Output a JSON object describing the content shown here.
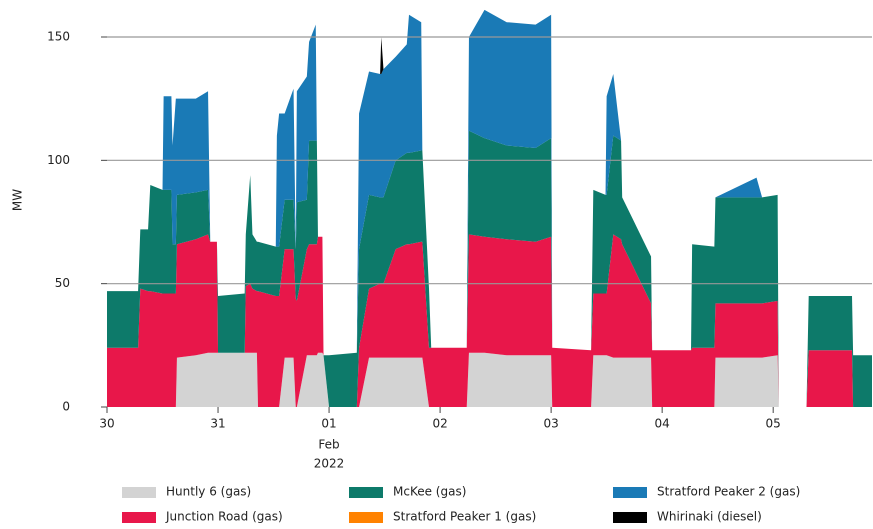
{
  "chart_data": {
    "type": "stacked_area",
    "y_label": "MW",
    "xlim": [
      0,
      6.89
    ],
    "ylim": [
      0,
      165
    ],
    "yticks": [
      0,
      50,
      100,
      150
    ],
    "xticks": [
      {
        "value": 0,
        "label": "30"
      },
      {
        "value": 1,
        "label": "31"
      },
      {
        "value": 2,
        "label": "01"
      },
      {
        "value": 3,
        "label": "02"
      },
      {
        "value": 4,
        "label": "03"
      },
      {
        "value": 5,
        "label": "04"
      },
      {
        "value": 6,
        "label": "05"
      }
    ],
    "xtick_sublabels": [
      "Feb",
      "2022"
    ],
    "grid": true,
    "x": [
      0,
      0.28,
      0.3,
      0.37,
      0.39,
      0.5,
      0.51,
      0.58,
      0.59,
      0.62,
      0.63,
      0.8,
      0.91,
      0.93,
      0.99,
      1,
      1.24,
      1.25,
      1.29,
      1.31,
      1.35,
      1.36,
      1.52,
      1.53,
      1.55,
      1.6,
      1.68,
      1.7,
      1.71,
      1.8,
      1.82,
      1.88,
      1.89,
      1.9,
      1.94,
      1.95,
      2,
      2.25,
      2.27,
      2.36,
      2.46,
      2.47,
      2.49,
      2.6,
      2.7,
      2.72,
      2.83,
      2.84,
      2.9,
      2.92,
      3.24,
      3.26,
      3.4,
      3.6,
      3.86,
      4,
      4.01,
      4.36,
      4.38,
      4.49,
      4.5,
      4.56,
      4.63,
      4.64,
      4.9,
      4.91,
      5.26,
      5.27,
      5.47,
      5.48,
      5.85,
      5.9,
      6.04,
      6.05,
      6.3,
      6.32,
      6.71,
      6.72,
      6.89
    ],
    "series": [
      {
        "name": "Huntly 6 (gas)",
        "color": "#d3d3d3",
        "values": [
          0,
          0,
          0,
          0,
          0,
          0,
          0,
          0,
          0,
          0,
          20,
          21,
          22,
          22,
          22,
          22,
          22,
          22,
          22,
          22,
          22,
          0,
          0,
          0,
          0,
          20,
          20,
          0,
          0,
          21,
          21,
          21,
          21,
          22,
          22,
          21,
          0,
          0,
          0,
          20,
          20,
          20,
          20,
          20,
          20,
          20,
          20,
          20,
          0,
          0,
          0,
          22,
          22,
          21,
          21,
          21,
          0,
          0,
          21,
          21,
          21,
          20,
          20,
          20,
          20,
          0,
          0,
          0,
          0,
          20,
          20,
          20,
          21,
          0,
          0,
          0,
          0,
          0,
          0
        ]
      },
      {
        "name": "Junction Road (gas)",
        "color": "#e8174a",
        "values": [
          24,
          24,
          48,
          47,
          47,
          46,
          46,
          46,
          46,
          46,
          46,
          47,
          48,
          45,
          45,
          0,
          0,
          27,
          28,
          26,
          25,
          47,
          45,
          45,
          45,
          44,
          44,
          44,
          43,
          43,
          45,
          45,
          45,
          47,
          47,
          0,
          0,
          0,
          24,
          28,
          30,
          30,
          30,
          44,
          46,
          46,
          47,
          47,
          24,
          24,
          24,
          48,
          47,
          47,
          46,
          48,
          24,
          23,
          25,
          25,
          25,
          50,
          48,
          46,
          22,
          23,
          23,
          24,
          24,
          22,
          22,
          22,
          22,
          0,
          0,
          23,
          23,
          0,
          0
        ]
      },
      {
        "name": "McKee (gas)",
        "color": "#0d7a6a",
        "values": [
          23,
          23,
          24,
          25,
          43,
          42,
          42,
          42,
          20,
          20,
          20,
          19,
          18,
          0,
          0,
          23,
          24,
          21,
          44,
          22,
          20,
          20,
          20,
          20,
          20,
          20,
          20,
          20,
          40,
          20,
          42,
          42,
          42,
          0,
          0,
          0,
          21,
          22,
          40,
          38,
          35,
          35,
          35,
          36,
          37,
          37,
          37,
          37,
          24,
          0,
          0,
          42,
          40,
          38,
          38,
          40,
          0,
          0,
          42,
          40,
          40,
          40,
          40,
          19,
          19,
          0,
          0,
          42,
          41,
          43,
          43,
          43,
          43,
          0,
          0,
          22,
          22,
          21,
          21
        ]
      },
      {
        "name": "Stratford Peaker 1 (gas)",
        "color": "#ff8200",
        "values": [
          0,
          0,
          0,
          0,
          0,
          0,
          0,
          0,
          0,
          0,
          0,
          0,
          0,
          0,
          0,
          0,
          0,
          0,
          0,
          0,
          0,
          0,
          0,
          0,
          0,
          0,
          0,
          0,
          0,
          0,
          0,
          0,
          0,
          0,
          0,
          0,
          0,
          0,
          0,
          0,
          0,
          0,
          0,
          0,
          0,
          0,
          0,
          0,
          0,
          0,
          0,
          0,
          0,
          0,
          0,
          0,
          0,
          0,
          0,
          0,
          0,
          0,
          0,
          0,
          0,
          0,
          0,
          0,
          0,
          0,
          0,
          0,
          0,
          0,
          0,
          0,
          0,
          0,
          0
        ]
      },
      {
        "name": "Stratford Peaker 2 (gas)",
        "color": "#1a7ab6",
        "values": [
          0,
          0,
          0,
          0,
          0,
          0,
          38,
          38,
          40,
          59,
          39,
          38,
          40,
          0,
          0,
          0,
          0,
          0,
          0,
          0,
          0,
          0,
          0,
          45,
          54,
          35,
          45,
          0,
          45,
          50,
          40,
          47,
          0,
          0,
          0,
          0,
          0,
          0,
          55,
          50,
          50,
          50,
          52,
          42,
          44,
          56,
          52,
          0,
          0,
          0,
          0,
          38,
          52,
          50,
          50,
          50,
          0,
          0,
          0,
          0,
          40,
          25,
          0,
          0,
          0,
          0,
          0,
          0,
          0,
          0,
          8,
          0,
          0,
          0,
          0,
          0,
          0,
          0,
          0
        ]
      },
      {
        "name": "Whirinaki (diesel)",
        "color": "#000000",
        "values": [
          0,
          0,
          0,
          0,
          0,
          0,
          0,
          0,
          0,
          0,
          0,
          0,
          0,
          0,
          0,
          0,
          0,
          0,
          0,
          0,
          0,
          0,
          0,
          0,
          0,
          0,
          0,
          0,
          0,
          0,
          0,
          0,
          0,
          0,
          0,
          0,
          0,
          0,
          0,
          0,
          0,
          15,
          0,
          0,
          0,
          0,
          0,
          0,
          0,
          0,
          0,
          0,
          0,
          0,
          0,
          0,
          0,
          0,
          0,
          0,
          0,
          0,
          0,
          0,
          0,
          0,
          0,
          0,
          0,
          0,
          0,
          0,
          0,
          0,
          0,
          0,
          0,
          0,
          0
        ]
      }
    ]
  }
}
